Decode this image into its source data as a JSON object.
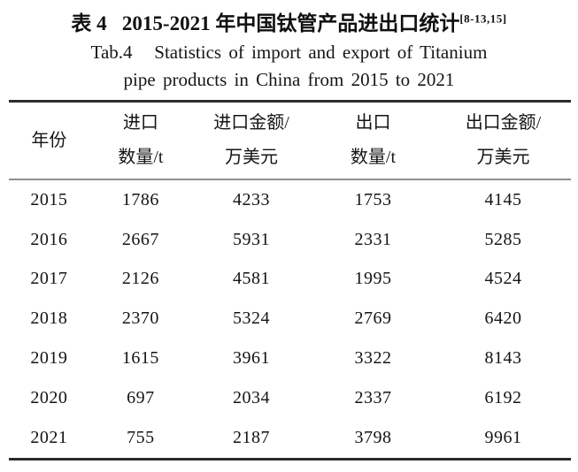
{
  "title": {
    "cn": "表 4   2015-2021 年中国钛管产品进出口统计",
    "citation": "[8-13,15]",
    "en_line1": "Tab.4   Statistics of import and export of Titanium",
    "en_line2": "pipe products in China from 2015 to 2021"
  },
  "table": {
    "columns": [
      {
        "line1": "年份",
        "line2": ""
      },
      {
        "line1": "进口",
        "line2": "数量/t"
      },
      {
        "line1": "进口金额/",
        "line2": "万美元"
      },
      {
        "line1": "出口",
        "line2": "数量/t"
      },
      {
        "line1": "出口金额/",
        "line2": "万美元"
      }
    ],
    "rows": [
      {
        "year": "2015",
        "import_qty": "1786",
        "import_value": "4233",
        "export_qty": "1753",
        "export_value": "4145"
      },
      {
        "year": "2016",
        "import_qty": "2667",
        "import_value": "5931",
        "export_qty": "2331",
        "export_value": "5285"
      },
      {
        "year": "2017",
        "import_qty": "2126",
        "import_value": "4581",
        "export_qty": "1995",
        "export_value": "4524"
      },
      {
        "year": "2018",
        "import_qty": "2370",
        "import_value": "5324",
        "export_qty": "2769",
        "export_value": "6420"
      },
      {
        "year": "2019",
        "import_qty": "1615",
        "import_value": "3961",
        "export_qty": "3322",
        "export_value": "8143"
      },
      {
        "year": "2020",
        "import_qty": "697",
        "import_value": "2034",
        "export_qty": "2337",
        "export_value": "6192"
      },
      {
        "year": "2021",
        "import_qty": "755",
        "import_value": "2187",
        "export_qty": "3798",
        "export_value": "9961"
      }
    ]
  },
  "colors": {
    "text": "#141414",
    "rule_heavy": "#2c2c2c",
    "rule_light": "#8f8f8f",
    "background": "#ffffff"
  }
}
